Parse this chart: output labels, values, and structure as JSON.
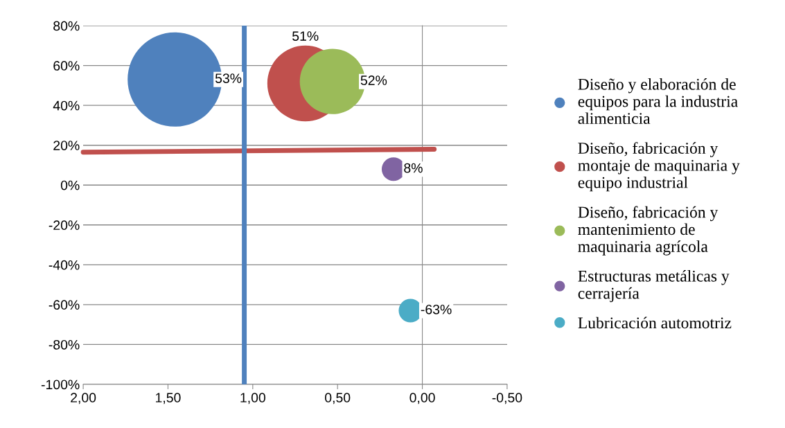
{
  "chart_data": {
    "type": "bubble",
    "xlim": [
      2.0,
      -0.5
    ],
    "ylim": [
      -100,
      80
    ],
    "xticks": [
      {
        "value": 2.0,
        "label": "2,00"
      },
      {
        "value": 1.5,
        "label": "1,50"
      },
      {
        "value": 1.0,
        "label": "1,00"
      },
      {
        "value": 0.5,
        "label": "0,50"
      },
      {
        "value": 0.0,
        "label": "0,00"
      },
      {
        "value": -0.5,
        "label": "-0,50"
      }
    ],
    "yticks": [
      {
        "value": -100,
        "label": "-100%"
      },
      {
        "value": -80,
        "label": "-80%"
      },
      {
        "value": -60,
        "label": "-60%"
      },
      {
        "value": -40,
        "label": "-40%"
      },
      {
        "value": -20,
        "label": "-20%"
      },
      {
        "value": 0,
        "label": "0%"
      },
      {
        "value": 20,
        "label": "20%"
      },
      {
        "value": 40,
        "label": "40%"
      },
      {
        "value": 60,
        "label": "60%"
      },
      {
        "value": 80,
        "label": "80%"
      }
    ],
    "grid": "y",
    "legend": "right",
    "marker": "circle",
    "series": [
      {
        "name": "Diseño y elaboración de\nequipos para la industria\nalimenticia",
        "color": "#4f81bd",
        "x": [
          1.46
        ],
        "values": [
          53
        ],
        "sizes": [
          1.0
        ],
        "value_labels": [
          "53%"
        ]
      },
      {
        "name": "Diseño, fabricación y\nmontaje de maquinaria y\nequipo industrial",
        "color": "#c0504d",
        "x": [
          0.69
        ],
        "values": [
          51
        ],
        "sizes": [
          0.65
        ],
        "value_labels": [
          "51%"
        ]
      },
      {
        "name": "Diseño, fabricación y\nmantenimiento de\nmaquinaria agrícola",
        "color": "#9bbb59",
        "x": [
          0.53
        ],
        "values": [
          52
        ],
        "sizes": [
          0.48
        ],
        "value_labels": [
          "52%"
        ]
      },
      {
        "name": "Estructuras metálicas y\ncerrajería",
        "color": "#8064a2",
        "x": [
          0.17
        ],
        "values": [
          8
        ],
        "sizes": [
          0.0625
        ],
        "value_labels": [
          "8%"
        ]
      },
      {
        "name": "Lubricación automotriz",
        "color": "#4bacc6",
        "x": [
          0.07
        ],
        "values": [
          -63
        ],
        "sizes": [
          0.0625
        ],
        "value_labels": [
          "-63%"
        ]
      },
      {
        "type": "line",
        "marker": "none",
        "color": "#c0504d",
        "x": [
          2.0,
          -0.07
        ],
        "values": [
          16.5,
          18
        ]
      }
    ],
    "ref_lines": [
      {
        "axis": "x",
        "value": 1.05,
        "color": "#4f81bd"
      }
    ]
  }
}
